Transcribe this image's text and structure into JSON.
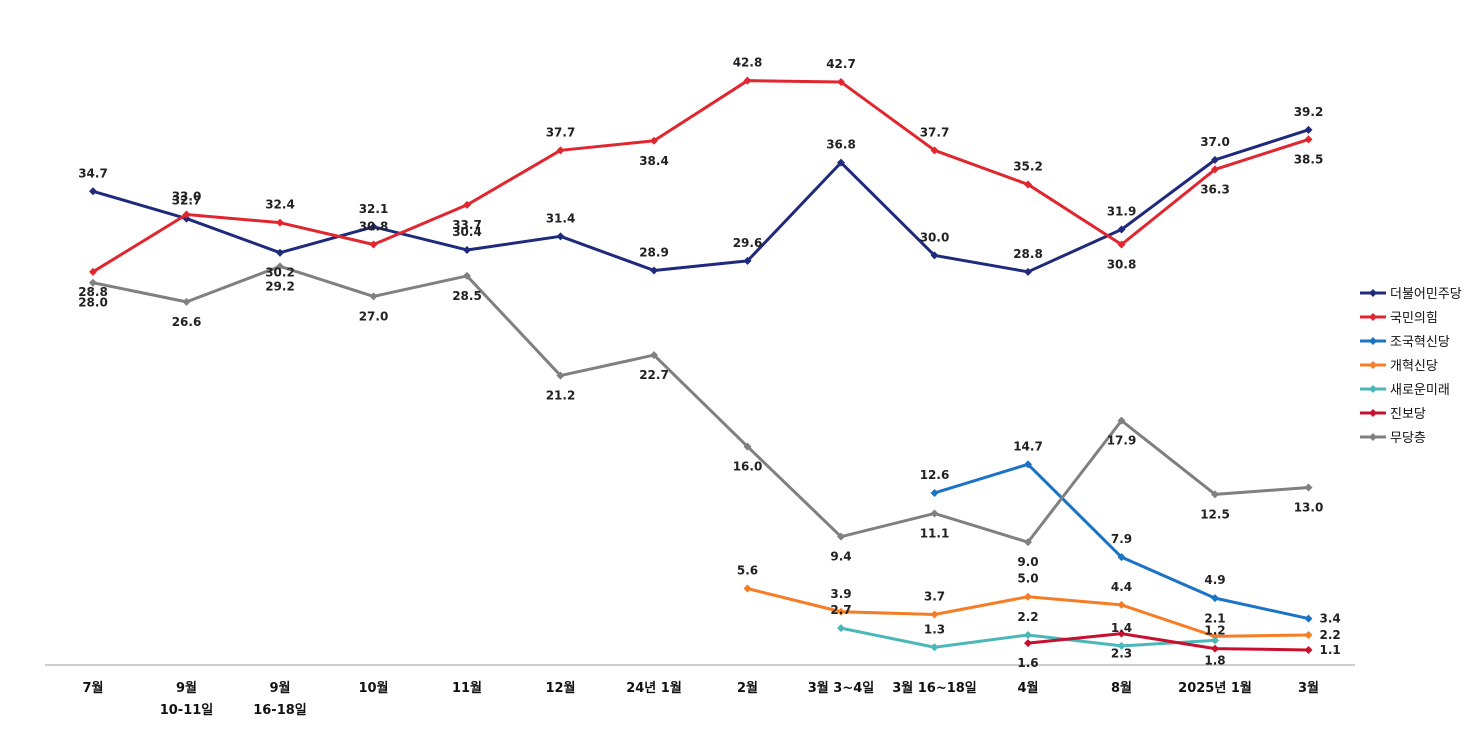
{
  "chart_data": {
    "type": "line",
    "title": "",
    "xlabel": "",
    "ylabel": "",
    "ylim": [
      0,
      46
    ],
    "grid": false,
    "legend_position": "right",
    "categories": [
      [
        "7월",
        ""
      ],
      [
        "9월",
        "10-11일"
      ],
      [
        "9월",
        "16-18일"
      ],
      [
        "10월",
        ""
      ],
      [
        "11월",
        ""
      ],
      [
        "12월",
        ""
      ],
      [
        "24년 1월",
        ""
      ],
      [
        "2월",
        ""
      ],
      [
        "3월 3~4일",
        ""
      ],
      [
        "3월 16~18일",
        ""
      ],
      [
        "4월",
        ""
      ],
      [
        "8월",
        ""
      ],
      [
        "2025년 1월",
        ""
      ],
      [
        "3월",
        ""
      ]
    ],
    "series": [
      {
        "name": "더불어민주당",
        "color": "#1f2a7c",
        "marker": "diamond",
        "values": [
          34.7,
          32.7,
          30.2,
          32.1,
          30.4,
          31.4,
          28.9,
          29.6,
          36.8,
          30.0,
          28.8,
          31.9,
          37.0,
          39.2
        ],
        "label_pos": [
          "a",
          "a",
          "b",
          "a",
          "a",
          "a",
          "a",
          "a",
          "a",
          "a",
          "a",
          "a",
          "a",
          "a"
        ]
      },
      {
        "name": "국민의힘",
        "color": "#e0262f",
        "marker": "diamond",
        "values": [
          28.8,
          33.0,
          32.4,
          30.8,
          33.7,
          37.7,
          38.4,
          42.8,
          42.7,
          37.7,
          35.2,
          30.8,
          36.3,
          38.5
        ],
        "label_pos": [
          "b",
          "a",
          "a",
          "a",
          "b",
          "a",
          "b",
          "a",
          "a",
          "a",
          "a",
          "b",
          "b",
          "b"
        ]
      },
      {
        "name": "조국혁신당",
        "color": "#1a73c4",
        "marker": "diamond",
        "values": [
          null,
          null,
          null,
          null,
          null,
          null,
          null,
          null,
          null,
          12.6,
          14.7,
          7.9,
          4.9,
          3.4
        ],
        "label_pos": [
          "",
          "",
          "",
          "",
          "",
          "",
          "",
          "",
          "",
          "a",
          "a",
          "a",
          "a",
          "r"
        ]
      },
      {
        "name": "개혁신당",
        "color": "#f47d25",
        "marker": "diamond",
        "values": [
          null,
          null,
          null,
          null,
          null,
          null,
          null,
          5.6,
          3.9,
          3.7,
          5.0,
          4.4,
          2.1,
          2.2
        ],
        "label_pos": [
          "",
          "",
          "",
          "",
          "",
          "",
          "",
          "a",
          "a",
          "a",
          "a",
          "a",
          "a",
          "r"
        ]
      },
      {
        "name": "새로운미래",
        "color": "#4ab8b8",
        "marker": "diamond",
        "values": [
          null,
          null,
          null,
          null,
          null,
          null,
          null,
          null,
          2.7,
          1.3,
          2.2,
          1.4,
          1.8,
          null
        ],
        "label_pos": [
          "",
          "",
          "",
          "",
          "",
          "",
          "",
          "",
          "a",
          "a",
          "a",
          "a",
          "b",
          ""
        ]
      },
      {
        "name": "진보당",
        "color": "#c8102e",
        "marker": "diamond",
        "values": [
          null,
          null,
          null,
          null,
          null,
          null,
          null,
          null,
          null,
          null,
          1.6,
          2.3,
          1.2,
          1.1
        ],
        "label_pos": [
          "",
          "",
          "",
          "",
          "",
          "",
          "",
          "",
          "",
          "",
          "b",
          "b",
          "a",
          "r"
        ]
      },
      {
        "name": "무당층",
        "color": "#808080",
        "marker": "diamond",
        "values": [
          28.0,
          26.6,
          29.2,
          27.0,
          28.5,
          21.2,
          22.7,
          16.0,
          9.4,
          11.1,
          9.0,
          17.9,
          12.5,
          13.0
        ],
        "label_pos": [
          "b",
          "b",
          "b",
          "b",
          "b",
          "b",
          "b",
          "b",
          "b",
          "b",
          "b",
          "b",
          "b",
          "b"
        ]
      }
    ]
  }
}
